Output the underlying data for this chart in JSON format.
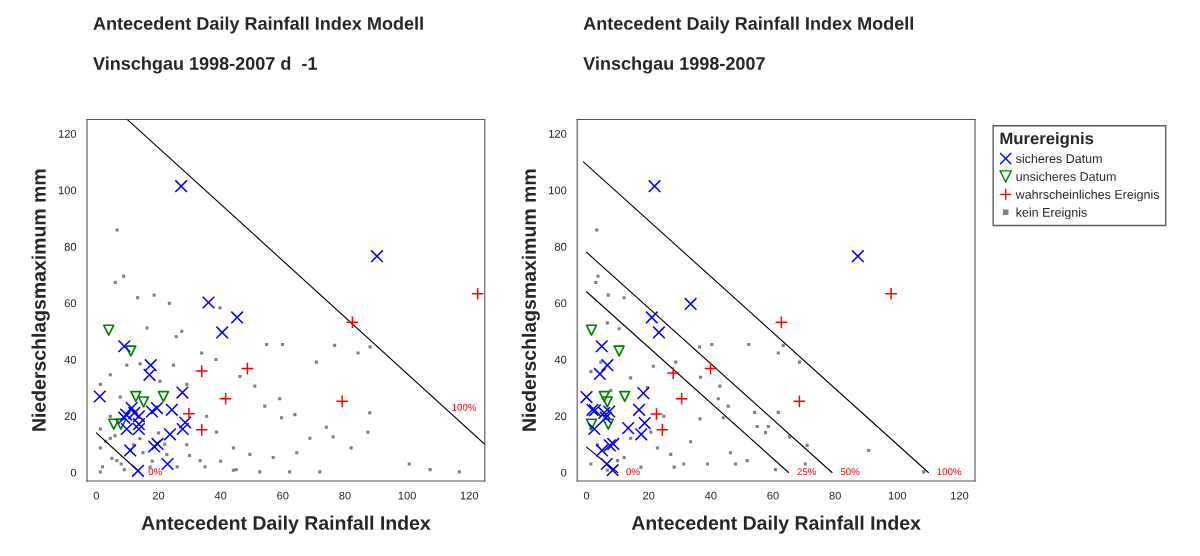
{
  "chart_data": [
    {
      "type": "scatter",
      "title": "Antecedent Daily Rainfall Index Modell",
      "subtitle": "Vinschgau 1998-2007 d  -1",
      "xlabel": "Antecedent Daily Rainfall Index",
      "ylabel": "Niederschlagsmaximum mm",
      "xlim": [
        -3,
        125
      ],
      "ylim": [
        -3,
        125
      ],
      "xticks": [
        0,
        20,
        40,
        60,
        80,
        100,
        120
      ],
      "yticks": [
        0,
        20,
        40,
        60,
        80,
        100,
        120
      ],
      "grid": false,
      "legend": false,
      "series": [
        {
          "color": "#808080",
          "marker": "square",
          "x": [
            6.7,
            8.8,
            6.1,
            13.3,
            18.6,
            23.5,
            39.8,
            16.3,
            27.5,
            25.7,
            54.8,
            59.9,
            76.7,
            84.2,
            88.1,
            70.8,
            33.9,
            38.5,
            46.2,
            51.0,
            59.0,
            63.9,
            59.6,
            54.2,
            74.0,
            76.2,
            87.4,
            88.0,
            82.0,
            68.7,
            64.5,
            71.9,
            100.7,
            107.4,
            116.8,
            56.9,
            49.4,
            44.1,
            38.7,
            35.5,
            29.1,
            33.4,
            22.7,
            44.1,
            52.6,
            62.2,
            1.3,
            6.6,
            1.3,
            4.5,
            12.0,
            17.3,
            1.3,
            4.5,
            9.8,
            14.1,
            24.8,
            20.5,
            29.1,
            7.7,
            1.3,
            4.5,
            2,
            5,
            8,
            11,
            3,
            14,
            18,
            22,
            26,
            30,
            9,
            15,
            20,
            6,
            35,
            40,
            45
          ],
          "values": [
            85.9,
            69.5,
            67.3,
            61.9,
            62.8,
            59.9,
            58.3,
            51.2,
            50.0,
            48.1,
            45.3,
            45.3,
            45.0,
            42.3,
            44.5,
            39.1,
            42.3,
            40.0,
            34.0,
            30.6,
            26.1,
            20.5,
            19.4,
            23.5,
            16.0,
            12.6,
            14.3,
            21.1,
            8.7,
            12.1,
            7.0,
            0.2,
            3.0,
            1.0,
            0.2,
            5.3,
            6.4,
            8.7,
            14.3,
            19.9,
            9.8,
            4.2,
            6.4,
            0.8,
            0.2,
            0.2,
            0.2,
            4.2,
            8.7,
            12.1,
            9.8,
            1.9,
            31.2,
            34.6,
            38.0,
            38.5,
            38.0,
            32.3,
            31.2,
            26.7,
            15.4,
            19.9,
            2,
            5,
            3,
            8,
            11,
            12,
            4,
            10,
            2,
            6,
            1,
            7,
            14,
            13,
            2,
            4,
            1
          ]
        },
        {
          "color": "#0000ff",
          "marker": "x",
          "x": [
            27.3,
            90.3,
            36.1,
            45.3,
            40.5,
            9.0,
            17.5,
            17.1,
            1.1,
            27.7,
            24.3,
            19.5,
            17.9,
            11.4,
            9.6,
            9.0,
            12.2,
            13.7,
            9.8,
            13.7,
            13.7,
            28.6,
            27.8,
            23.7,
            19.7,
            18.6,
            10.9,
            13.4,
            22.9
          ],
          "values": [
            101.4,
            76.6,
            60.2,
            54.9,
            49.6,
            44.7,
            38.0,
            34.6,
            26.9,
            28.3,
            22.2,
            22.8,
            21.6,
            22.8,
            20.5,
            19.4,
            21.1,
            19.9,
            15.4,
            15.4,
            17.1,
            17.7,
            15.4,
            13.5,
            10.1,
            9.2,
            7.8,
            0.6,
            3.0
          ]
        },
        {
          "color": "#008000",
          "marker": "triangle",
          "x": [
            4.0,
            11.1,
            12.7,
            15.2,
            21.6,
            5.6,
            7.9
          ],
          "values": [
            50.4,
            43.0,
            26.9,
            25.0,
            26.9,
            17.1,
            17.1
          ]
        },
        {
          "color": "#ff0000",
          "marker": "cross",
          "x": [
            122.7,
            82.4,
            48.6,
            33.9,
            41.6,
            79.1,
            29.8,
            33.9
          ],
          "values": [
            63.3,
            53.2,
            36.8,
            35.9,
            26.1,
            25.2,
            20.8,
            15.1
          ]
        },
        {
          "type": "line",
          "color": "#000000",
          "x": [
            10,
            125
          ],
          "values": [
            125,
            10
          ]
        },
        {
          "type": "line",
          "color": "#000000",
          "x": [
            0,
            14
          ],
          "values": [
            14,
            0
          ]
        }
      ],
      "annotations": [
        "100%",
        "0%"
      ]
    },
    {
      "type": "scatter",
      "title": "Antecedent Daily Rainfall Index Modell",
      "subtitle": "Vinschgau 1998-2007",
      "xlabel": "Antecedent Daily Rainfall Index",
      "ylabel": "Niederschlagsmaximum mm",
      "legend_title": "Murereignis",
      "xlim": [
        -3,
        125
      ],
      "ylim": [
        -3,
        125
      ],
      "xticks": [
        0,
        20,
        40,
        60,
        80,
        100,
        120
      ],
      "yticks": [
        0,
        20,
        40,
        60,
        80,
        100,
        120
      ],
      "grid": false,
      "legend": "right",
      "series": [
        {
          "name": "sicheres Datum",
          "color": "#0000ff",
          "marker": "x",
          "x": [
            21.9,
            87.3,
            33.5,
            21.0,
            23.3,
            4.9,
            6.7,
            4.3,
            0,
            18.3,
            16.9,
            18.7,
            17.6,
            13.4,
            1.9,
            2.7,
            2.5,
            5.7,
            7.3,
            6.2,
            5.0,
            7.5,
            8.6,
            6.5,
            8.4
          ],
          "values": [
            101.4,
            76.6,
            59.7,
            54.9,
            49.6,
            44.7,
            38.0,
            34.9,
            26.7,
            28.1,
            22.2,
            17.5,
            13.5,
            15.7,
            22.2,
            22.0,
            15.4,
            21.1,
            21.6,
            19.4,
            7.8,
            9.6,
            10.1,
            3.0,
            0.8
          ]
        },
        {
          "name": "unsicheres Datum",
          "color": "#008000",
          "marker": "triangle",
          "x": [
            1.6,
            10.5,
            5.7,
            12.3,
            6.7,
            1.6,
            7.0
          ],
          "values": [
            50.4,
            43.0,
            26.9,
            26.9,
            25.0,
            17.1,
            17.1
          ]
        },
        {
          "name": "wahrscheinliches Ereignis",
          "color": "#ff0000",
          "marker": "cross",
          "x": [
            98.0,
            62.7,
            39.9,
            27.9,
            30.6,
            68.5,
            22.5,
            24.4
          ],
          "values": [
            63.3,
            53.2,
            36.8,
            35.2,
            26.1,
            25.2,
            20.7,
            15.1
          ]
        },
        {
          "name": "kein Ereignis",
          "color": "#808080",
          "marker": "square",
          "x": [
            3.3,
            3.7,
            3.0,
            12.1,
            7.0,
            10.5,
            6.7,
            36.4,
            40.3,
            52.2,
            63.3,
            61.7,
            68.5,
            28.7,
            21.5,
            36.7,
            42.9,
            42.4,
            45.6,
            54.1,
            61.7,
            44.0,
            36.5,
            54.9,
            58.5,
            65.3,
            57.6,
            71.0,
            90.8,
            70.4,
            60.8,
            108.5,
            46.3,
            51.7,
            47.9,
            38.9,
            31.3,
            33.5,
            24.9,
            19.6,
            14.2,
            1.4,
            4.6,
            7.8,
            1.4,
            3.5,
            1.4,
            6.7,
            12.1,
            17.5,
            22.8,
            28.2,
            14.2,
            10.0,
            20.7,
            27.1
          ],
          "values": [
            85.9,
            69.5,
            67.3,
            61.9,
            62.8,
            50.9,
            53.0,
            44.5,
            45.3,
            45.3,
            45.0,
            42.3,
            39.1,
            39.1,
            37.6,
            33.7,
            30.6,
            26.1,
            23.5,
            21.3,
            21.3,
            19.4,
            19.0,
            16.3,
            16.3,
            12.6,
            14.1,
            9.6,
            7.8,
            3.0,
            1.0,
            0.2,
            7.0,
            4.2,
            3.0,
            3.0,
            3.0,
            10.9,
            19.9,
            30.1,
            33.5,
            35.7,
            39.1,
            29.0,
            15.4,
            9.8,
            3.0,
            0.8,
            5.3,
            1.9,
            8.7,
            1.9,
            12.1,
            4.2,
            14.3,
            6.4
          ]
        },
        {
          "type": "line",
          "color": "#000000",
          "x": [
            0,
            10
          ],
          "values": [
            9,
            0
          ]
        },
        {
          "type": "line",
          "color": "#000000",
          "x": [
            0,
            65
          ],
          "values": [
            64,
            0
          ]
        },
        {
          "type": "line",
          "color": "#000000",
          "x": [
            0,
            79
          ],
          "values": [
            78,
            0
          ]
        },
        {
          "type": "line",
          "color": "#000000",
          "x": [
            -1,
            110
          ],
          "values": [
            110,
            0
          ]
        }
      ],
      "annotations": [
        "0%",
        "25%",
        "50%",
        "100%"
      ]
    }
  ]
}
